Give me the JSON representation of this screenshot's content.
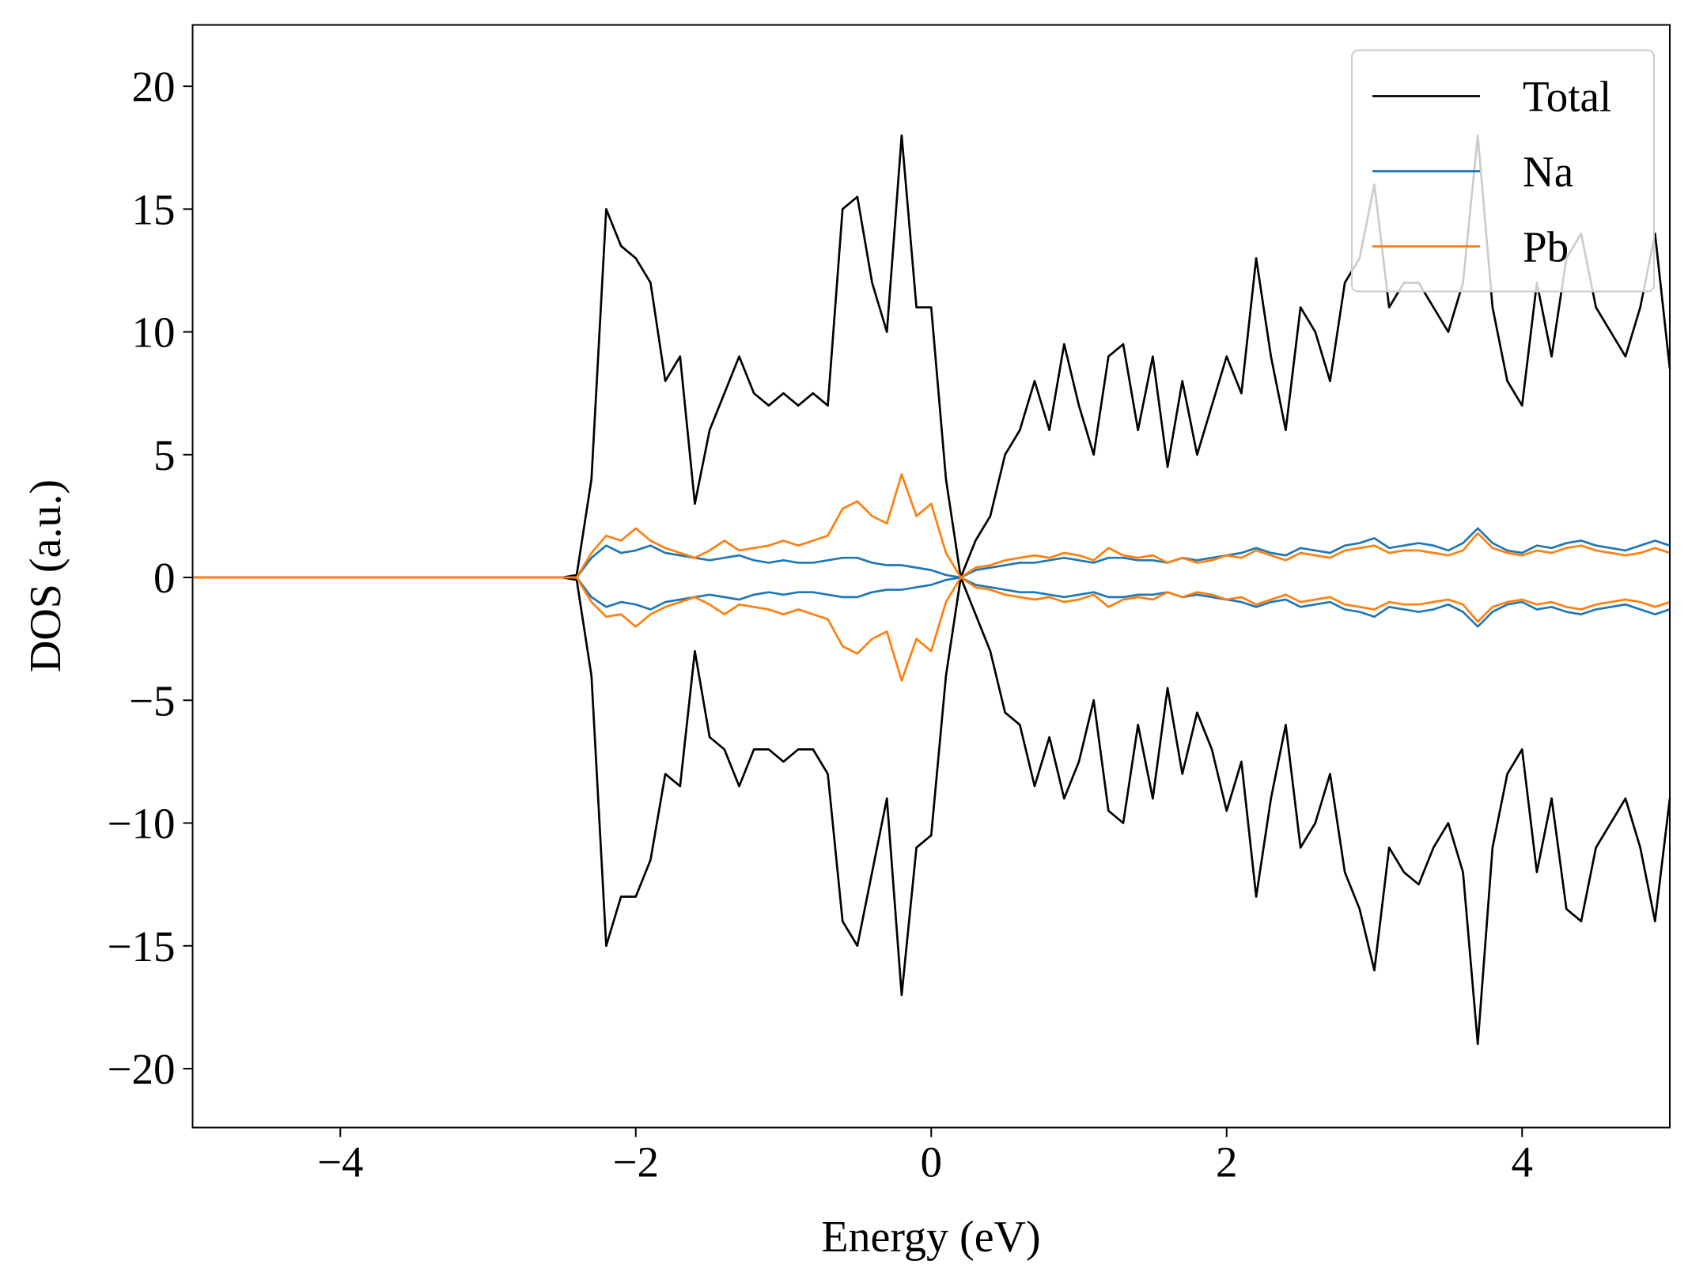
{
  "chart_data": {
    "type": "line",
    "xlabel": "Energy (eV)",
    "ylabel": "DOS (a.u.)",
    "xlim": [
      -5,
      5
    ],
    "ylim": [
      -22.4,
      22.5
    ],
    "xticks": [
      {
        "value": -4,
        "label": "−4"
      },
      {
        "value": -2,
        "label": "−2"
      },
      0,
      2,
      4
    ],
    "yticks": [
      {
        "value": -20,
        "label": "−20"
      },
      {
        "value": -15,
        "label": "−15"
      },
      {
        "value": -10,
        "label": "−10"
      },
      {
        "value": -5,
        "label": "−5"
      },
      0,
      5,
      10,
      15,
      20
    ],
    "legend": "upper right",
    "x": [
      -5,
      -4.9,
      -4.8,
      -4.7,
      -4.6,
      -4.5,
      -4.4,
      -4.3,
      -4.2,
      -4.1,
      -4,
      -3.9,
      -3.8,
      -3.7,
      -3.6,
      -3.5,
      -3.4,
      -3.3,
      -3.2,
      -3.1,
      -3,
      -2.9,
      -2.8,
      -2.7,
      -2.6,
      -2.5,
      -2.4,
      -2.3,
      -2.2,
      -2.1,
      -2,
      -1.9,
      -1.8,
      -1.7,
      -1.6,
      -1.5,
      -1.4,
      -1.3,
      -1.2,
      -1.1,
      -1,
      -0.9,
      -0.8,
      -0.7,
      -0.6,
      -0.5,
      -0.4,
      -0.3,
      -0.2,
      -0.1,
      0,
      0.1,
      0.2,
      0.3,
      0.4,
      0.5,
      0.6,
      0.7,
      0.8,
      0.9,
      1,
      1.1,
      1.2,
      1.3,
      1.4,
      1.5,
      1.6,
      1.7,
      1.8,
      1.9,
      2,
      2.1,
      2.2,
      2.3,
      2.4,
      2.5,
      2.6,
      2.7,
      2.8,
      2.9,
      3,
      3.1,
      3.2,
      3.3,
      3.4,
      3.5,
      3.6,
      3.7,
      3.8,
      3.9,
      4,
      4.1,
      4.2,
      4.3,
      4.4,
      4.5,
      4.6,
      4.7,
      4.8,
      4.9,
      5
    ],
    "series": [
      {
        "name": "Total",
        "color": "#000000",
        "values": [
          0,
          0,
          0,
          0,
          0,
          0,
          0,
          0,
          0,
          0,
          0,
          0,
          0,
          0,
          0,
          0,
          0,
          0,
          0,
          0,
          0,
          0,
          0,
          0,
          0,
          0,
          0.1,
          4,
          15,
          13.5,
          13,
          12,
          8,
          9,
          3,
          6,
          7.5,
          9,
          7.5,
          7,
          7.5,
          7,
          7.5,
          7,
          15,
          15.5,
          12,
          10,
          18,
          11,
          11,
          4,
          0,
          1.5,
          2.5,
          5,
          6,
          8,
          6,
          9.5,
          7,
          5,
          9,
          9.5,
          6,
          9,
          4.5,
          8,
          5,
          7,
          9,
          7.5,
          13,
          9,
          6,
          11,
          10,
          8,
          12,
          13,
          16,
          11,
          12,
          12,
          11,
          10,
          12,
          18,
          11,
          8,
          7,
          12,
          9,
          13,
          14,
          11,
          10,
          9,
          11,
          14,
          8.5
        ],
        "values_down": [
          0,
          0,
          0,
          0,
          0,
          0,
          0,
          0,
          0,
          0,
          0,
          0,
          0,
          0,
          0,
          0,
          0,
          0,
          0,
          0,
          0,
          0,
          0,
          0,
          0,
          0,
          -0.1,
          -4,
          -15,
          -13,
          -13,
          -11.5,
          -8,
          -8.5,
          -3,
          -6.5,
          -7,
          -8.5,
          -7,
          -7,
          -7.5,
          -7,
          -7,
          -8,
          -14,
          -15,
          -12,
          -9,
          -17,
          -11,
          -10.5,
          -4,
          0,
          -1.5,
          -3,
          -5.5,
          -6,
          -8.5,
          -6.5,
          -9,
          -7.5,
          -5,
          -9.5,
          -10,
          -6,
          -9,
          -4.5,
          -8,
          -5.5,
          -7,
          -9.5,
          -7.5,
          -13,
          -9,
          -6,
          -11,
          -10,
          -8,
          -12,
          -13.5,
          -16,
          -11,
          -12,
          -12.5,
          -11,
          -10,
          -12,
          -19,
          -11,
          -8,
          -7,
          -12,
          -9,
          -13.5,
          -14,
          -11,
          -10,
          -9,
          -11,
          -14,
          -9
        ]
      },
      {
        "name": "Na",
        "color": "#1f77b4",
        "values": [
          0,
          0,
          0,
          0,
          0,
          0,
          0,
          0,
          0,
          0,
          0,
          0,
          0,
          0,
          0,
          0,
          0,
          0,
          0,
          0,
          0,
          0,
          0,
          0,
          0,
          0,
          0,
          0.8,
          1.3,
          1.0,
          1.1,
          1.3,
          1.0,
          0.9,
          0.8,
          0.7,
          0.8,
          0.9,
          0.7,
          0.6,
          0.7,
          0.6,
          0.6,
          0.7,
          0.8,
          0.8,
          0.6,
          0.5,
          0.5,
          0.4,
          0.3,
          0.1,
          0,
          0.3,
          0.4,
          0.5,
          0.6,
          0.6,
          0.7,
          0.8,
          0.7,
          0.6,
          0.8,
          0.8,
          0.7,
          0.7,
          0.6,
          0.8,
          0.7,
          0.8,
          0.9,
          1.0,
          1.2,
          1.0,
          0.9,
          1.2,
          1.1,
          1.0,
          1.3,
          1.4,
          1.6,
          1.2,
          1.3,
          1.4,
          1.3,
          1.1,
          1.4,
          2.0,
          1.4,
          1.1,
          1.0,
          1.3,
          1.2,
          1.4,
          1.5,
          1.3,
          1.2,
          1.1,
          1.3,
          1.5,
          1.3
        ],
        "values_down": [
          0,
          0,
          0,
          0,
          0,
          0,
          0,
          0,
          0,
          0,
          0,
          0,
          0,
          0,
          0,
          0,
          0,
          0,
          0,
          0,
          0,
          0,
          0,
          0,
          0,
          0,
          0,
          -0.8,
          -1.2,
          -1.0,
          -1.1,
          -1.3,
          -1.0,
          -0.9,
          -0.8,
          -0.7,
          -0.8,
          -0.9,
          -0.7,
          -0.6,
          -0.7,
          -0.6,
          -0.6,
          -0.7,
          -0.8,
          -0.8,
          -0.6,
          -0.5,
          -0.5,
          -0.4,
          -0.3,
          -0.1,
          0,
          -0.3,
          -0.4,
          -0.5,
          -0.6,
          -0.6,
          -0.7,
          -0.8,
          -0.7,
          -0.6,
          -0.8,
          -0.8,
          -0.7,
          -0.7,
          -0.6,
          -0.8,
          -0.7,
          -0.8,
          -0.9,
          -1.0,
          -1.2,
          -1.0,
          -0.9,
          -1.2,
          -1.1,
          -1.0,
          -1.3,
          -1.4,
          -1.6,
          -1.2,
          -1.3,
          -1.4,
          -1.3,
          -1.1,
          -1.4,
          -2.0,
          -1.4,
          -1.1,
          -1.0,
          -1.3,
          -1.2,
          -1.4,
          -1.5,
          -1.3,
          -1.2,
          -1.1,
          -1.3,
          -1.5,
          -1.3
        ]
      },
      {
        "name": "Pb",
        "color": "#ff7f0e",
        "values": [
          0,
          0,
          0,
          0,
          0,
          0,
          0,
          0,
          0,
          0,
          0,
          0,
          0,
          0,
          0,
          0,
          0,
          0,
          0,
          0,
          0,
          0,
          0,
          0,
          0,
          0,
          0,
          1.0,
          1.7,
          1.5,
          2.0,
          1.5,
          1.2,
          1.0,
          0.8,
          1.1,
          1.5,
          1.1,
          1.2,
          1.3,
          1.5,
          1.3,
          1.5,
          1.7,
          2.8,
          3.1,
          2.5,
          2.2,
          4.2,
          2.5,
          3.0,
          1.0,
          0,
          0.4,
          0.5,
          0.7,
          0.8,
          0.9,
          0.8,
          1.0,
          0.9,
          0.7,
          1.2,
          0.9,
          0.8,
          0.9,
          0.6,
          0.8,
          0.6,
          0.7,
          0.9,
          0.8,
          1.1,
          0.9,
          0.7,
          1.0,
          0.9,
          0.8,
          1.1,
          1.2,
          1.3,
          1.0,
          1.1,
          1.1,
          1.0,
          0.9,
          1.1,
          1.8,
          1.2,
          1.0,
          0.9,
          1.1,
          1.0,
          1.2,
          1.3,
          1.1,
          1.0,
          0.9,
          1.0,
          1.2,
          1.0
        ],
        "values_down": [
          0,
          0,
          0,
          0,
          0,
          0,
          0,
          0,
          0,
          0,
          0,
          0,
          0,
          0,
          0,
          0,
          0,
          0,
          0,
          0,
          0,
          0,
          0,
          0,
          0,
          0,
          0,
          -1.0,
          -1.6,
          -1.5,
          -2.0,
          -1.5,
          -1.2,
          -1.0,
          -0.8,
          -1.1,
          -1.5,
          -1.1,
          -1.2,
          -1.3,
          -1.5,
          -1.3,
          -1.5,
          -1.7,
          -2.8,
          -3.1,
          -2.5,
          -2.2,
          -4.2,
          -2.5,
          -3.0,
          -1.0,
          0,
          -0.4,
          -0.5,
          -0.7,
          -0.8,
          -0.9,
          -0.8,
          -1.0,
          -0.9,
          -0.7,
          -1.2,
          -0.9,
          -0.8,
          -0.9,
          -0.6,
          -0.8,
          -0.6,
          -0.7,
          -0.9,
          -0.8,
          -1.1,
          -0.9,
          -0.7,
          -1.0,
          -0.9,
          -0.8,
          -1.1,
          -1.2,
          -1.3,
          -1.0,
          -1.1,
          -1.1,
          -1.0,
          -0.9,
          -1.1,
          -1.8,
          -1.2,
          -1.0,
          -0.9,
          -1.1,
          -1.0,
          -1.2,
          -1.3,
          -1.1,
          -1.0,
          -0.9,
          -1.0,
          -1.2,
          -1.0
        ]
      }
    ]
  }
}
